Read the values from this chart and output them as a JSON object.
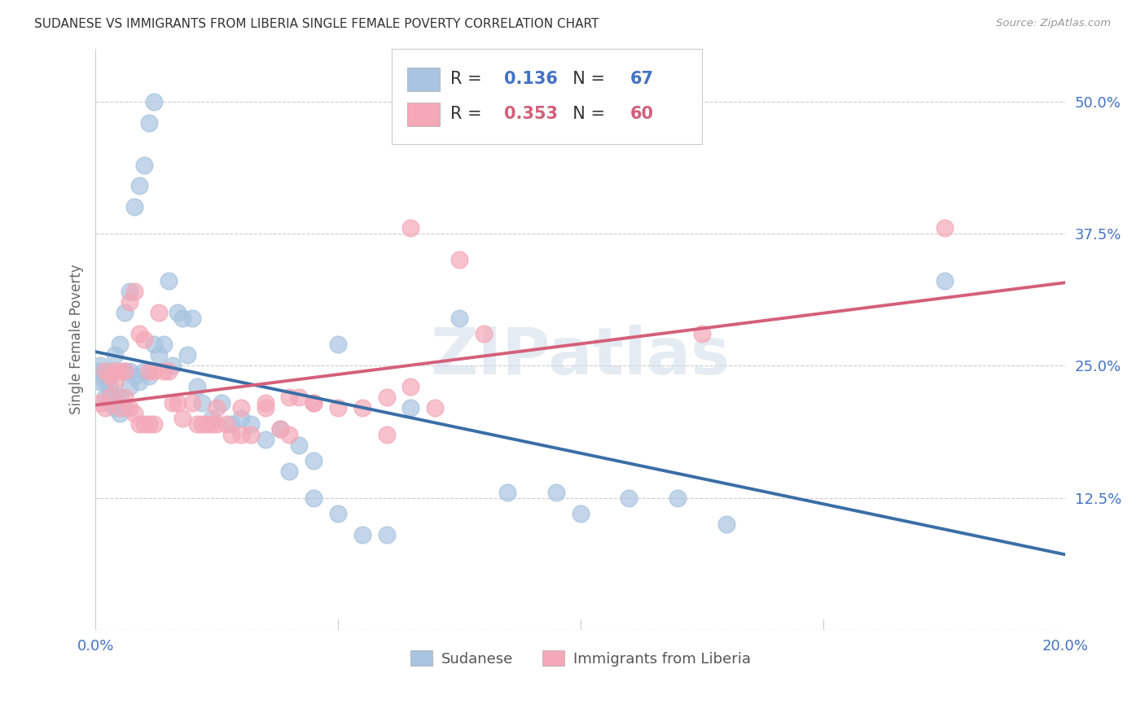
{
  "title": "SUDANESE VS IMMIGRANTS FROM LIBERIA SINGLE FEMALE POVERTY CORRELATION CHART",
  "source": "Source: ZipAtlas.com",
  "ylabel": "Single Female Poverty",
  "xlim": [
    0.0,
    0.2
  ],
  "ylim": [
    0.0,
    0.55
  ],
  "legend_label1": "Sudanese",
  "legend_label2": "Immigrants from Liberia",
  "R1": 0.136,
  "N1": 67,
  "R2": 0.353,
  "N2": 60,
  "color1": "#a8c4e0",
  "color2": "#f4a8b8",
  "line_color1": "#3a6ea5",
  "line_color2": "#d45f7a",
  "background_color": "#ffffff",
  "watermark": "ZIPatlas",
  "sudanese_x": [
    0.001,
    0.001,
    0.001,
    0.002,
    0.002,
    0.002,
    0.002,
    0.003,
    0.003,
    0.003,
    0.003,
    0.004,
    0.004,
    0.004,
    0.005,
    0.005,
    0.005,
    0.006,
    0.006,
    0.006,
    0.007,
    0.007,
    0.007,
    0.008,
    0.008,
    0.009,
    0.009,
    0.01,
    0.01,
    0.011,
    0.011,
    0.012,
    0.012,
    0.013,
    0.014,
    0.015,
    0.016,
    0.017,
    0.018,
    0.019,
    0.02,
    0.021,
    0.022,
    0.024,
    0.026,
    0.028,
    0.03,
    0.032,
    0.035,
    0.038,
    0.042,
    0.045,
    0.05,
    0.06,
    0.065,
    0.075,
    0.085,
    0.095,
    0.1,
    0.11,
    0.12,
    0.13,
    0.045,
    0.05,
    0.04,
    0.055,
    0.175
  ],
  "sudanese_y": [
    0.235,
    0.245,
    0.25,
    0.22,
    0.235,
    0.24,
    0.245,
    0.215,
    0.225,
    0.23,
    0.245,
    0.21,
    0.22,
    0.26,
    0.205,
    0.22,
    0.27,
    0.21,
    0.245,
    0.3,
    0.23,
    0.245,
    0.32,
    0.24,
    0.4,
    0.235,
    0.42,
    0.245,
    0.44,
    0.24,
    0.48,
    0.27,
    0.5,
    0.26,
    0.27,
    0.33,
    0.25,
    0.3,
    0.295,
    0.26,
    0.295,
    0.23,
    0.215,
    0.2,
    0.215,
    0.195,
    0.2,
    0.195,
    0.18,
    0.19,
    0.175,
    0.16,
    0.27,
    0.09,
    0.21,
    0.295,
    0.13,
    0.13,
    0.11,
    0.125,
    0.125,
    0.1,
    0.125,
    0.11,
    0.15,
    0.09,
    0.33
  ],
  "liberia_x": [
    0.001,
    0.002,
    0.002,
    0.003,
    0.003,
    0.004,
    0.004,
    0.005,
    0.005,
    0.006,
    0.006,
    0.007,
    0.007,
    0.008,
    0.008,
    0.009,
    0.009,
    0.01,
    0.01,
    0.011,
    0.011,
    0.012,
    0.012,
    0.013,
    0.014,
    0.015,
    0.016,
    0.017,
    0.018,
    0.02,
    0.021,
    0.022,
    0.023,
    0.024,
    0.025,
    0.027,
    0.028,
    0.03,
    0.032,
    0.035,
    0.038,
    0.04,
    0.042,
    0.045,
    0.05,
    0.055,
    0.06,
    0.065,
    0.07,
    0.075,
    0.08,
    0.06,
    0.065,
    0.045,
    0.04,
    0.035,
    0.03,
    0.025,
    0.125,
    0.175
  ],
  "liberia_y": [
    0.215,
    0.21,
    0.245,
    0.22,
    0.24,
    0.235,
    0.245,
    0.21,
    0.245,
    0.22,
    0.245,
    0.21,
    0.31,
    0.205,
    0.32,
    0.195,
    0.28,
    0.195,
    0.275,
    0.195,
    0.245,
    0.195,
    0.245,
    0.3,
    0.245,
    0.245,
    0.215,
    0.215,
    0.2,
    0.215,
    0.195,
    0.195,
    0.195,
    0.195,
    0.195,
    0.195,
    0.185,
    0.185,
    0.185,
    0.21,
    0.19,
    0.185,
    0.22,
    0.215,
    0.21,
    0.21,
    0.185,
    0.38,
    0.21,
    0.35,
    0.28,
    0.22,
    0.23,
    0.215,
    0.22,
    0.215,
    0.21,
    0.21,
    0.28,
    0.38
  ]
}
